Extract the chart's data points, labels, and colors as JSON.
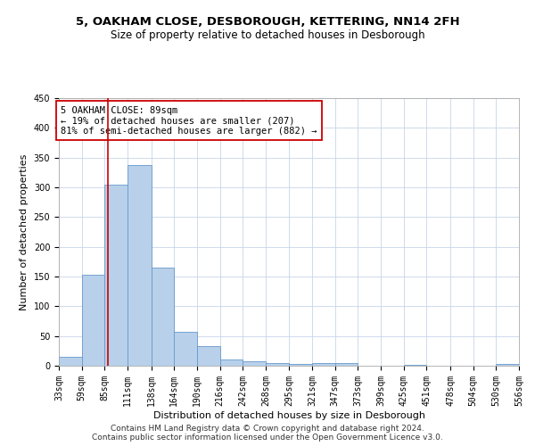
{
  "title": "5, OAKHAM CLOSE, DESBOROUGH, KETTERING, NN14 2FH",
  "subtitle": "Size of property relative to detached houses in Desborough",
  "xlabel": "Distribution of detached houses by size in Desborough",
  "ylabel": "Number of detached properties",
  "footer_line1": "Contains HM Land Registry data © Crown copyright and database right 2024.",
  "footer_line2": "Contains public sector information licensed under the Open Government Licence v3.0.",
  "bar_color": "#b8d0ea",
  "bar_edge_color": "#6699cc",
  "grid_color": "#c8d4e8",
  "red_line_color": "#cc0000",
  "annotation_box_color": "#cc0000",
  "annotation_text_line1": "5 OAKHAM CLOSE: 89sqm",
  "annotation_text_line2": "← 19% of detached houses are smaller (207)",
  "annotation_text_line3": "81% of semi-detached houses are larger (882) →",
  "property_size": 89,
  "bin_edges": [
    33,
    59,
    85,
    111,
    138,
    164,
    190,
    216,
    242,
    268,
    295,
    321,
    347,
    373,
    399,
    425,
    451,
    478,
    504,
    530,
    556
  ],
  "bin_counts": [
    15,
    153,
    305,
    338,
    165,
    57,
    33,
    10,
    8,
    5,
    3,
    5,
    5,
    0,
    0,
    1,
    0,
    0,
    0,
    3
  ],
  "ylim": [
    0,
    450
  ],
  "yticks": [
    0,
    50,
    100,
    150,
    200,
    250,
    300,
    350,
    400,
    450
  ],
  "background_color": "#ffffff",
  "title_fontsize": 9.5,
  "subtitle_fontsize": 8.5,
  "axis_label_fontsize": 8,
  "tick_fontsize": 7,
  "annotation_fontsize": 7.5,
  "footer_fontsize": 6.5
}
